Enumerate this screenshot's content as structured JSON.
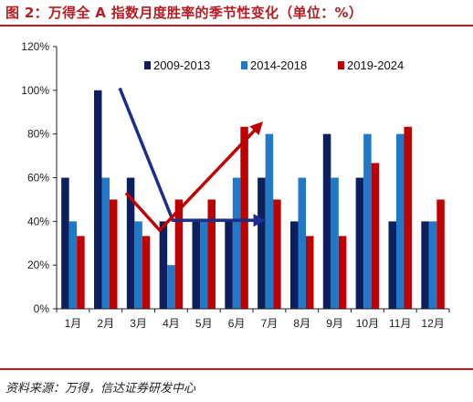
{
  "figure": {
    "title": "图 2：万得全 A 指数月度胜率的季节性变化（单位：%）",
    "source": "资料来源：万得，信达证券研发中心"
  },
  "chart_data": {
    "type": "bar",
    "categories": [
      "1月",
      "2月",
      "3月",
      "4月",
      "5月",
      "6月",
      "7月",
      "8月",
      "9月",
      "10月",
      "11月",
      "12月"
    ],
    "series": [
      {
        "name": "2009-2013",
        "color": "#0d1f5c",
        "values": [
          60,
          100,
          60,
          40,
          40,
          40,
          60,
          40,
          80,
          60,
          40,
          40
        ]
      },
      {
        "name": "2014-2018",
        "color": "#1f78c8",
        "values": [
          40,
          60,
          40,
          20,
          40,
          60,
          80,
          60,
          60,
          80,
          80,
          40
        ]
      },
      {
        "name": "2019-2024",
        "color": "#c00000",
        "values": [
          33.3,
          50,
          33.3,
          50,
          50,
          83.3,
          50,
          33.3,
          33.3,
          66.7,
          83.3,
          50
        ]
      }
    ],
    "ylim": [
      0,
      120
    ],
    "yticks": [
      "0%",
      "20%",
      "40%",
      "60%",
      "80%",
      "100%",
      "120%"
    ],
    "grid": false,
    "legend_position": "top",
    "annotations": [
      {
        "type": "arrow",
        "color": "#1a2e8a",
        "points": [
          [
            1.93,
            101
          ],
          [
            3.55,
            40.5
          ],
          [
            6.25,
            40.5
          ]
        ]
      },
      {
        "type": "arrow",
        "color": "#c00000",
        "points": [
          [
            2.12,
            53
          ],
          [
            3.15,
            36
          ],
          [
            6.2,
            84
          ]
        ]
      }
    ]
  }
}
